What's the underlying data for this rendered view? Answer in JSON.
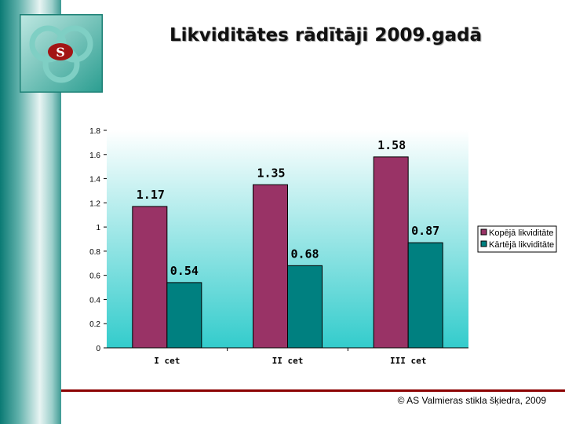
{
  "title": "Likviditātes rādītāji 2009.gadā",
  "footer": "© AS Valmieras stikla šķiedra, 2009",
  "logo": {
    "text": "S"
  },
  "chart_data": {
    "type": "bar",
    "title": "Likviditātes rādītāji 2009.gadā",
    "categories": [
      "I cet",
      "II cet",
      "III cet"
    ],
    "series": [
      {
        "name": "Kopējā likviditāte",
        "values": [
          1.17,
          1.35,
          1.58
        ],
        "color": "#993366"
      },
      {
        "name": "Kārtējā likviditāte",
        "values": [
          0.54,
          0.68,
          0.87
        ],
        "color": "#008080"
      }
    ],
    "ylim": [
      0,
      1.8
    ],
    "yticks": [
      "0",
      "0.2",
      "0.4",
      "0.6",
      "0.8",
      "1",
      "1.2",
      "1.4",
      "1.6",
      "1.8"
    ],
    "data_labels": [
      "1.17",
      "1.35",
      "1.58",
      "0.54",
      "0.68",
      "0.87"
    ],
    "legend": "right",
    "grid": false,
    "background": "gradient white to cyan"
  }
}
